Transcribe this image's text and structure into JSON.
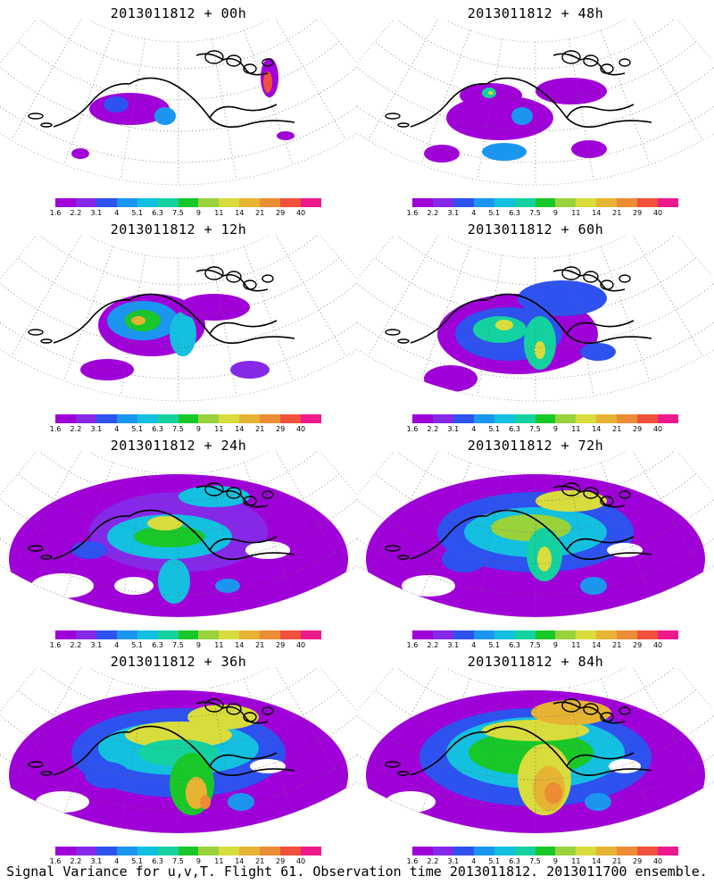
{
  "footer": "Signal Variance for u,v,T. Flight 61. Observation time 2013011812. 2013011700 ensemble.",
  "colorbar": {
    "labels": [
      "1.6",
      "2.2",
      "3.1",
      "4",
      "5.1",
      "6.3",
      "7.5",
      "9",
      "11",
      "14",
      "21",
      "29",
      "40"
    ],
    "colors": [
      "#a000d8",
      "#8628e8",
      "#2d52f0",
      "#1a96f0",
      "#13c0e0",
      "#14d2a0",
      "#18c828",
      "#9ad23c",
      "#d8dc3c",
      "#e6b432",
      "#ec8c34",
      "#f0503c",
      "#ee1a8c"
    ]
  },
  "panels": [
    {
      "title": "2013011812 + 00h",
      "level": 0
    },
    {
      "title": "2013011812 + 48h",
      "level": 4
    },
    {
      "title": "2013011812 + 12h",
      "level": 1
    },
    {
      "title": "2013011812 + 60h",
      "level": 5
    },
    {
      "title": "2013011812 + 24h",
      "level": 2
    },
    {
      "title": "2013011812 + 72h",
      "level": 6
    },
    {
      "title": "2013011812 + 36h",
      "level": 3
    },
    {
      "title": "2013011812 + 84h",
      "level": 7
    }
  ]
}
